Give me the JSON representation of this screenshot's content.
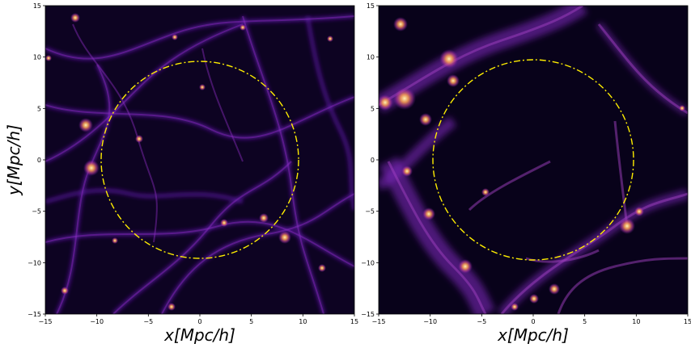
{
  "panels": [
    {
      "id": "left",
      "xlabel": "x[Mpc/h]",
      "ylabel": "y[Mpc/h]",
      "xlim": [
        -15,
        15
      ],
      "ylim": [
        -15,
        15
      ],
      "xticks": [
        "−15",
        "−10",
        "−5",
        "0",
        "5",
        "10",
        "15"
      ],
      "yticks": [
        "15",
        "10",
        "5",
        "0",
        "−5",
        "−10",
        "−15"
      ],
      "circle": {
        "center": [
          0,
          0
        ],
        "radius": 9.6,
        "color": "#ffee00",
        "style": "dashdot"
      },
      "colormap": "inferno-like"
    },
    {
      "id": "right",
      "xlabel": "x[Mpc/h]",
      "ylabel": "",
      "xlim": [
        -15,
        15
      ],
      "ylim": [
        -15,
        15
      ],
      "xticks": [
        "−15",
        "−10",
        "−5",
        "0",
        "5",
        "10",
        "15"
      ],
      "yticks": [
        "15",
        "10",
        "5",
        "0",
        "−5",
        "−10",
        "−15"
      ],
      "circle": {
        "center": [
          0,
          0
        ],
        "radius": 9.7,
        "color": "#ffee00",
        "style": "dashdot"
      },
      "colormap": "inferno-like"
    }
  ],
  "colors": {
    "background_dark": "#05010f",
    "filament": "#6a1fb0",
    "halo": "#f7a35c",
    "circle": "#ffee00"
  }
}
